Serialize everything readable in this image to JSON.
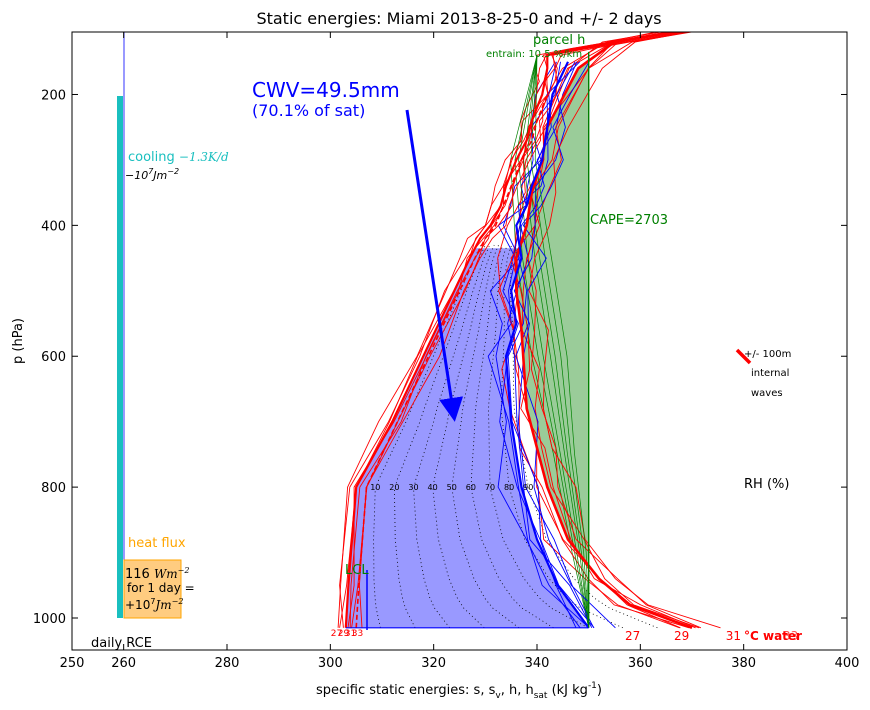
{
  "chart_data": {
    "type": "line",
    "title": "Static energies: Miami 2013-8-25-0 and +/- 2 days",
    "xlabel": "specific static energies: s, s",
    "xlabel_sub": "v",
    "xlabel_mid": ", h, h",
    "xlabel_sub2": "sat",
    "xlabel_units": " (kJ kg",
    "xlabel_exp": "-1",
    "xlabel_close": ")",
    "ylabel": "p (hPa)",
    "xlim": [
      250,
      400
    ],
    "ylim": [
      1050,
      100
    ],
    "xticks": [
      250,
      260,
      280,
      300,
      320,
      340,
      360,
      380,
      400
    ],
    "xtick_labels": [
      "250",
      "260",
      "280",
      "300",
      "320",
      "340",
      "360",
      "380",
      "400"
    ],
    "yticks": [
      200,
      400,
      600,
      800,
      1000
    ],
    "ytick_labels": [
      "200",
      "400",
      "600",
      "800",
      "1000"
    ],
    "colors": {
      "s": "#ff0000",
      "h": "#0000ff",
      "cape_fill": "#9acc99",
      "cape_line": "#008000",
      "cwv_fill": "#9999ff",
      "cooling": "#19bfbf",
      "heat_flux": "#ffa500"
    },
    "series": [
      {
        "key": "s_main",
        "x": [
          303,
          303.5,
          305,
          312,
          318,
          324,
          327,
          329,
          331,
          333,
          334,
          336,
          338,
          339,
          340,
          341,
          341.5,
          342,
          342,
          348,
          370
        ],
        "y": [
          1015,
          950,
          800,
          700,
          600,
          500,
          450,
          420,
          400,
          370,
          340,
          300,
          270,
          240,
          220,
          200,
          180,
          160,
          140,
          130,
          100
        ]
      },
      {
        "key": "sv_main",
        "x": [
          305,
          305.5,
          307,
          313,
          319,
          325,
          328,
          330,
          332,
          333.5,
          335,
          337,
          339,
          340,
          341,
          342
        ],
        "y": [
          1015,
          950,
          800,
          700,
          600,
          500,
          450,
          420,
          400,
          370,
          340,
          300,
          270,
          240,
          220,
          200
        ]
      },
      {
        "key": "h_main",
        "x": [
          350,
          344,
          340,
          337,
          335,
          334,
          336,
          335,
          337,
          336,
          338,
          339,
          341,
          342,
          343,
          346
        ],
        "y": [
          1015,
          950,
          880,
          800,
          700,
          600,
          550,
          500,
          450,
          400,
          370,
          340,
          300,
          250,
          200,
          150
        ]
      },
      {
        "key": "hsat_main",
        "x": [
          370,
          358,
          352,
          346,
          342,
          340,
          338,
          337.5,
          337,
          336,
          336,
          338,
          339,
          341,
          342,
          348,
          355,
          370
        ],
        "y": [
          1015,
          980,
          940,
          880,
          800,
          740,
          680,
          620,
          560,
          500,
          450,
          400,
          350,
          300,
          250,
          160,
          120,
          100
        ]
      },
      {
        "key": "parcel",
        "x": [
          350,
          350,
          350,
          350,
          350,
          350,
          350
        ],
        "y": [
          1015,
          900,
          700,
          500,
          300,
          200,
          135
        ]
      }
    ],
    "rh_curves": {
      "labels": [
        "10",
        "20",
        "30",
        "40",
        "50",
        "60",
        "70",
        "80",
        "90"
      ],
      "label_pressure": 800
    },
    "surface_ticks": {
      "left_labels": [
        "27",
        "29",
        "31",
        "33"
      ],
      "right_labels": [
        "27",
        "29",
        "31"
      ],
      "right_extra": "33",
      "unit_label": "°C water"
    },
    "annotations": {
      "cwv_main": "CWV=49.5mm",
      "cwv_sub": "(70.1% of sat)",
      "parcel": "parcel h",
      "entrain": "entrain: 10.5 %/km",
      "cape": "CAPE=2703",
      "lcl": "LCL",
      "rh": "RH (%)",
      "waves_1": "+/- 100m",
      "waves_2": "internal",
      "waves_3": "waves",
      "cooling": "cooling ",
      "cooling_rate": "−1.3K/d",
      "cooling_energy": "−10",
      "cooling_energy_exp": "7",
      "cooling_energy_units": "Jm",
      "cooling_energy_units_exp": "−2",
      "heat_flux": "heat flux",
      "flux_value": "116 ",
      "flux_units": "Wm",
      "flux_units_exp": "−2",
      "flux_line2": "for 1 day =",
      "flux_line3": "+10",
      "flux_line3_exp": "7",
      "flux_line3_units": "Jm",
      "flux_line3_units_exp": "−2",
      "daily_rce": "daily RCE"
    }
  }
}
